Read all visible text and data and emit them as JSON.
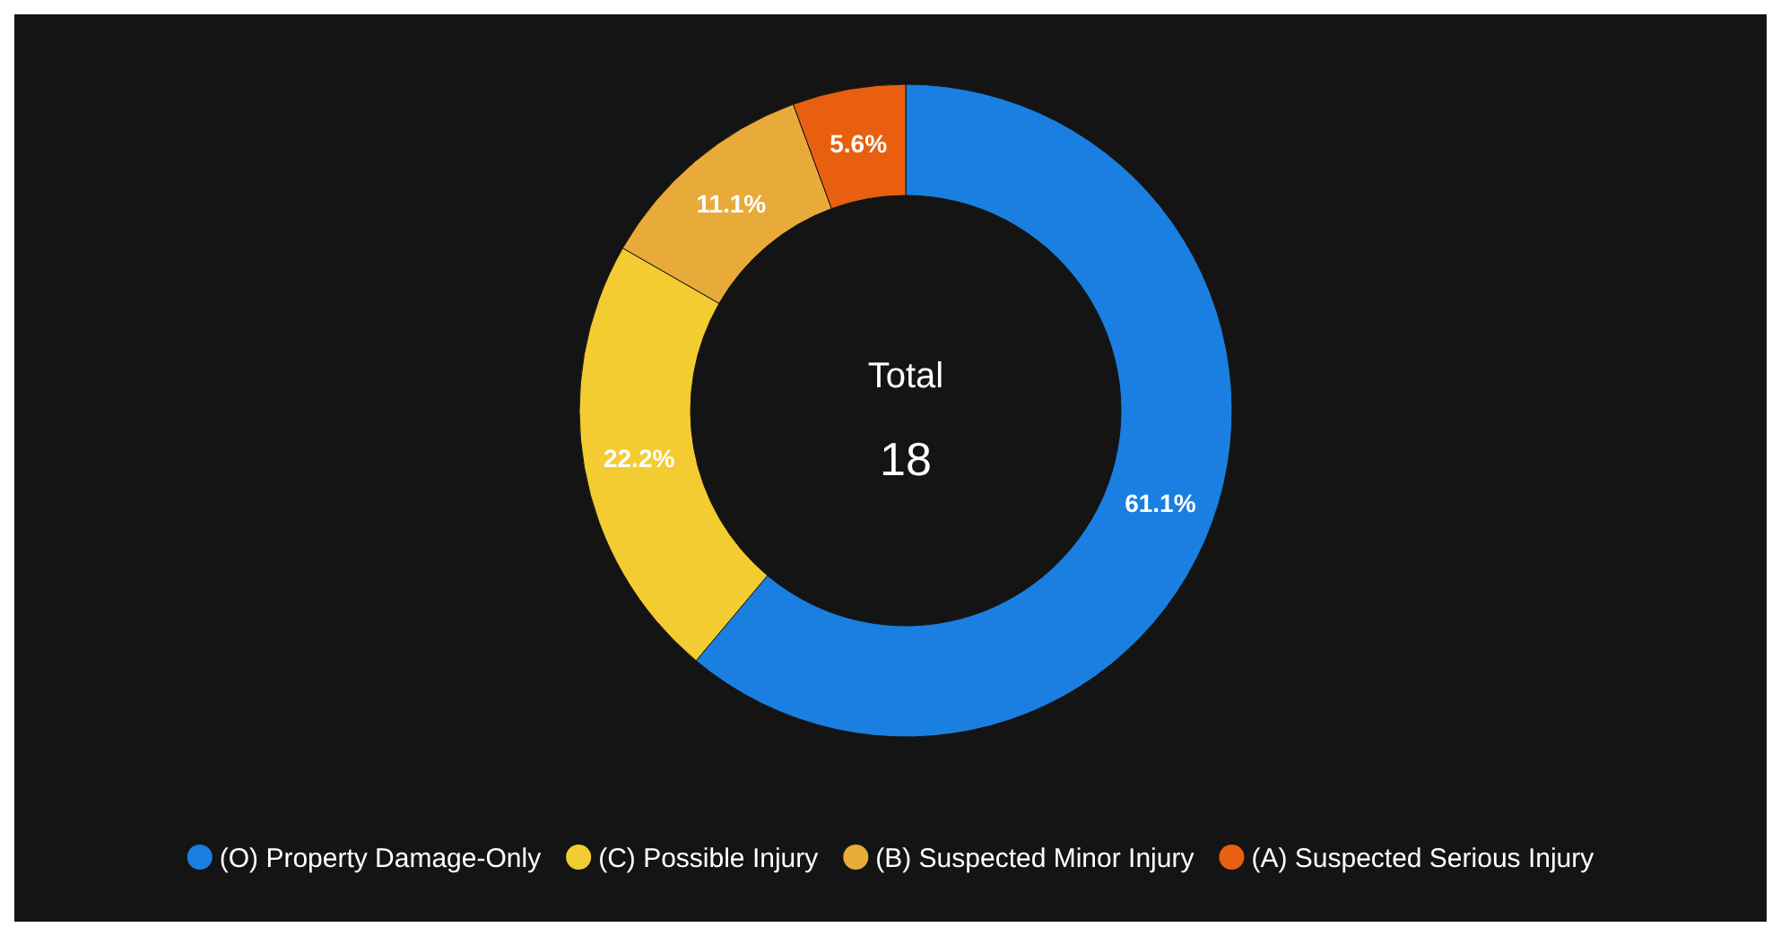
{
  "chart_data": {
    "type": "donut",
    "categories": [
      "(O) Property Damage-Only",
      "(C) Possible Injury",
      "(B) Suspected Minor Injury",
      "(A) Suspected Serious Injury"
    ],
    "values": [
      61.1,
      22.2,
      11.1,
      5.6
    ],
    "colors": [
      "#1a7fe0",
      "#f2cc30",
      "#e8ab3a",
      "#e8600f"
    ],
    "value_labels": [
      "61.1%",
      "22.2%",
      "11.1%",
      "5.6%"
    ],
    "annotations": [
      "Total",
      "18"
    ],
    "legend": "bottom"
  }
}
